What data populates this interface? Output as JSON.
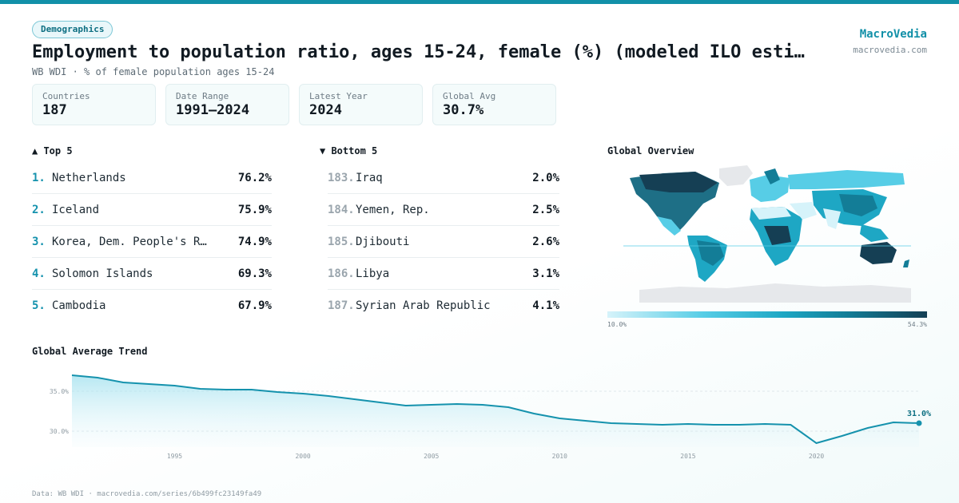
{
  "header": {
    "tag": "Demographics",
    "title": "Employment to population ratio, ages 15-24, female (%) (modeled ILO esti…",
    "subtitle": "WB WDI · % of female population ages 15-24"
  },
  "brand": {
    "name": "MacroVedia",
    "url": "macrovedia.com"
  },
  "stats": [
    {
      "label": "Countries",
      "value": "187"
    },
    {
      "label": "Date Range",
      "value": "1991–2024"
    },
    {
      "label": "Latest Year",
      "value": "2024"
    },
    {
      "label": "Global Avg",
      "value": "30.7%"
    }
  ],
  "top5": {
    "title": "▲ Top 5",
    "items": [
      {
        "rank": "1.",
        "name": "Netherlands",
        "value": "76.2%"
      },
      {
        "rank": "2.",
        "name": "Iceland",
        "value": "75.9%"
      },
      {
        "rank": "3.",
        "name": "Korea, Dem. People's R…",
        "value": "74.9%"
      },
      {
        "rank": "4.",
        "name": "Solomon Islands",
        "value": "69.3%"
      },
      {
        "rank": "5.",
        "name": "Cambodia",
        "value": "67.9%"
      }
    ]
  },
  "bottom5": {
    "title": "▼ Bottom 5",
    "items": [
      {
        "rank": "183.",
        "name": "Iraq",
        "value": "2.0%"
      },
      {
        "rank": "184.",
        "name": "Yemen, Rep.",
        "value": "2.5%"
      },
      {
        "rank": "185.",
        "name": "Djibouti",
        "value": "2.6%"
      },
      {
        "rank": "186.",
        "name": "Libya",
        "value": "3.1%"
      },
      {
        "rank": "187.",
        "name": "Syrian Arab Republic",
        "value": "4.1%"
      }
    ]
  },
  "map": {
    "title": "Global Overview",
    "legend_min": "10.0%",
    "legend_max": "54.3%",
    "colors": {
      "low": "#d6f3fa",
      "mid": "#1ea7c4",
      "high": "#153f54",
      "no_data": "#e6e8eb"
    }
  },
  "trend": {
    "title": "Global Average Trend",
    "end_label": "31.0%"
  },
  "footer": "Data: WB WDI · macrovedia.com/series/6b499fc23149fa49",
  "chart_data": {
    "type": "area",
    "title": "Global Average Trend",
    "x": [
      1991,
      1992,
      1993,
      1994,
      1995,
      1996,
      1997,
      1998,
      1999,
      2000,
      2001,
      2002,
      2003,
      2004,
      2005,
      2006,
      2007,
      2008,
      2009,
      2010,
      2011,
      2012,
      2013,
      2014,
      2015,
      2016,
      2017,
      2018,
      2019,
      2020,
      2021,
      2022,
      2023,
      2024
    ],
    "series": [
      {
        "values": [
          37.0,
          36.7,
          36.1,
          35.9,
          35.7,
          35.3,
          35.2,
          35.2,
          34.9,
          34.7,
          34.4,
          34.0,
          33.6,
          33.2,
          33.3,
          33.4,
          33.3,
          33.0,
          32.2,
          31.6,
          31.3,
          31.0,
          30.9,
          30.8,
          30.9,
          30.8,
          30.8,
          30.9,
          30.8,
          28.5,
          29.4,
          30.4,
          31.1,
          31.0
        ]
      }
    ],
    "yticks": [
      "30.0%",
      "35.0%"
    ],
    "xticks": [
      "1995",
      "2000",
      "2005",
      "2010",
      "2015",
      "2020"
    ],
    "ylim": [
      28,
      38
    ],
    "xlim": [
      1991,
      2024
    ],
    "grid": true,
    "color": "#1592ad"
  }
}
